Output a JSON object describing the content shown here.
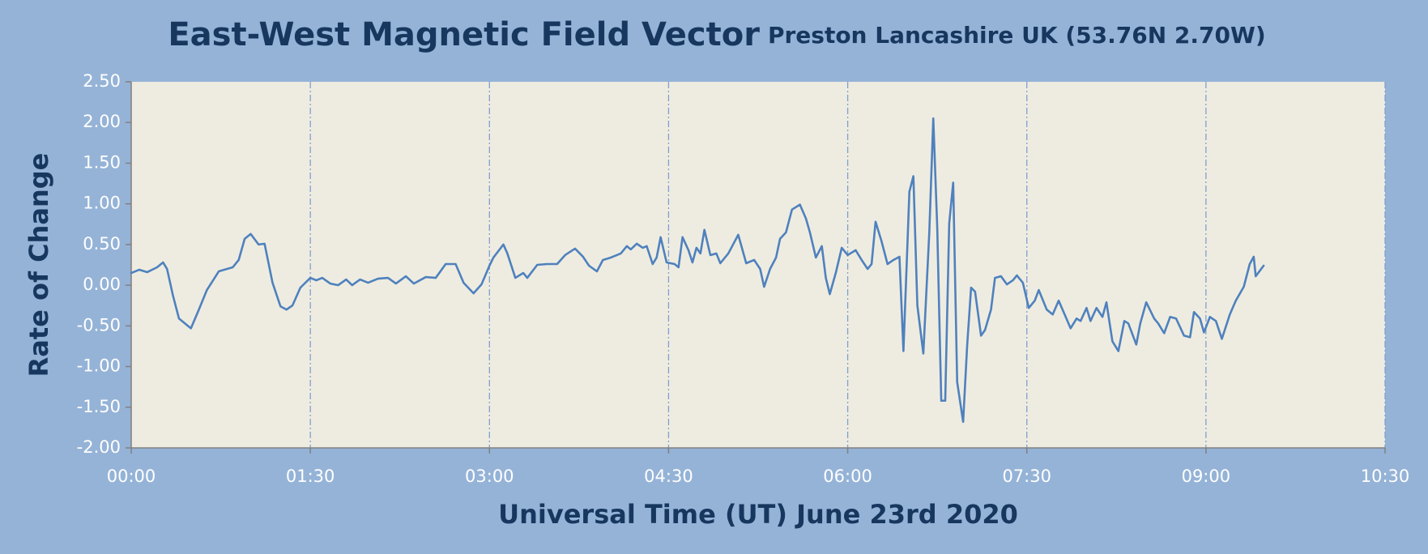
{
  "chart_data": {
    "type": "line",
    "title": "East-West Magnetic Field Vector",
    "subtitle": "Preston Lancashire UK (53.76N 2.70W)",
    "x_label": "Universal Time (UT) June 23rd 2020",
    "y_label": "Rate of Change",
    "xlim": [
      0,
      630
    ],
    "xticks": [
      {
        "value": 0,
        "label": "00:00"
      },
      {
        "value": 90,
        "label": "01:30"
      },
      {
        "value": 180,
        "label": "03:00"
      },
      {
        "value": 270,
        "label": "04:30"
      },
      {
        "value": 360,
        "label": "06:00"
      },
      {
        "value": 450,
        "label": "07:30"
      },
      {
        "value": 540,
        "label": "09:00"
      },
      {
        "value": 630,
        "label": "10:30"
      }
    ],
    "ylim": [
      -2,
      2.5
    ],
    "yticks": [
      {
        "value": 2.5,
        "label": "2.50"
      },
      {
        "value": 2,
        "label": "2.00"
      },
      {
        "value": 1.5,
        "label": "1.50"
      },
      {
        "value": 1,
        "label": "1.00"
      },
      {
        "value": 0.5,
        "label": "0.50"
      },
      {
        "value": 0,
        "label": "0.00"
      },
      {
        "value": -0.5,
        "label": "-0.50"
      },
      {
        "value": -1,
        "label": "-1.00"
      },
      {
        "value": -1.5,
        "label": "-1.50"
      },
      {
        "value": -2,
        "label": "-2.00"
      }
    ],
    "grid": "x",
    "color": "#4f81bd",
    "x": [
      0,
      4,
      8,
      13,
      16,
      18,
      21,
      24,
      27,
      30,
      34,
      38,
      44,
      51,
      54,
      57,
      60,
      64,
      67,
      71,
      75,
      78,
      81,
      85,
      90,
      93,
      96,
      100,
      104,
      108,
      111,
      115,
      119,
      124,
      129,
      133,
      138,
      142,
      148,
      153,
      158,
      163,
      167,
      172,
      176,
      180,
      182,
      187,
      189,
      193,
      197,
      199,
      204,
      209,
      214,
      218,
      223,
      227,
      230,
      234,
      237,
      241,
      246,
      249,
      251,
      254,
      257,
      259,
      262,
      264,
      266,
      269,
      273,
      275,
      277,
      280,
      282,
      284,
      286,
      288,
      291,
      294,
      296,
      300,
      305,
      309,
      313,
      316,
      318,
      321,
      324,
      326,
      329,
      332,
      336,
      339,
      341,
      344,
      347,
      349,
      351,
      354,
      357,
      360,
      364,
      367,
      370,
      372,
      374,
      377,
      380,
      383,
      386,
      388,
      391,
      393,
      395,
      398,
      401,
      403,
      405,
      407,
      409,
      411,
      413,
      415,
      418,
      420,
      422,
      424,
      427,
      429,
      432,
      434,
      437,
      440,
      443,
      445,
      448,
      451,
      454,
      456,
      460,
      463,
      466,
      469,
      472,
      475,
      477,
      480,
      482,
      485,
      488,
      490,
      493,
      496,
      499,
      501,
      505,
      507,
      510,
      514,
      516,
      519,
      522,
      525,
      529,
      532,
      534,
      537,
      539,
      542,
      545,
      548,
      552,
      555,
      559,
      562,
      564,
      565,
      569
    ],
    "values": [
      0.15,
      0.19,
      0.16,
      0.22,
      0.28,
      0.2,
      -0.13,
      -0.41,
      -0.47,
      -0.53,
      -0.3,
      -0.06,
      0.17,
      0.22,
      0.31,
      0.57,
      0.63,
      0.5,
      0.51,
      0.03,
      -0.26,
      -0.3,
      -0.25,
      -0.03,
      0.09,
      0.06,
      0.09,
      0.02,
      0,
      0.07,
      0,
      0.07,
      0.03,
      0.08,
      0.09,
      0.02,
      0.11,
      0.02,
      0.1,
      0.09,
      0.26,
      0.26,
      0.03,
      -0.1,
      0.01,
      0.24,
      0.34,
      0.5,
      0.39,
      0.09,
      0.15,
      0.09,
      0.25,
      0.26,
      0.26,
      0.37,
      0.45,
      0.35,
      0.24,
      0.17,
      0.31,
      0.34,
      0.39,
      0.48,
      0.44,
      0.51,
      0.46,
      0.48,
      0.26,
      0.34,
      0.59,
      0.28,
      0.26,
      0.22,
      0.59,
      0.43,
      0.28,
      0.46,
      0.39,
      0.68,
      0.37,
      0.39,
      0.27,
      0.39,
      0.62,
      0.27,
      0.31,
      0.2,
      -0.02,
      0.2,
      0.34,
      0.57,
      0.65,
      0.93,
      0.99,
      0.82,
      0.65,
      0.34,
      0.48,
      0.09,
      -0.11,
      0.15,
      0.46,
      0.37,
      0.43,
      0.31,
      0.2,
      0.26,
      0.78,
      0.54,
      0.26,
      0.31,
      0.35,
      -0.81,
      1.15,
      1.34,
      -0.25,
      -0.84,
      0.65,
      2.05,
      0.7,
      -1.42,
      -1.42,
      0.76,
      1.26,
      -1.19,
      -1.68,
      -0.75,
      -0.03,
      -0.08,
      -0.62,
      -0.55,
      -0.3,
      0.09,
      0.11,
      0.01,
      0.06,
      0.12,
      0.03,
      -0.28,
      -0.19,
      -0.06,
      -0.3,
      -0.36,
      -0.19,
      -0.36,
      -0.53,
      -0.41,
      -0.44,
      -0.28,
      -0.44,
      -0.28,
      -0.39,
      -0.21,
      -0.69,
      -0.81,
      -0.44,
      -0.47,
      -0.73,
      -0.47,
      -0.21,
      -0.41,
      -0.47,
      -0.59,
      -0.39,
      -0.41,
      -0.62,
      -0.64,
      -0.33,
      -0.41,
      -0.58,
      -0.39,
      -0.44,
      -0.66,
      -0.36,
      -0.19,
      -0.02,
      0.26,
      0.35,
      0.11,
      0.24
    ]
  }
}
